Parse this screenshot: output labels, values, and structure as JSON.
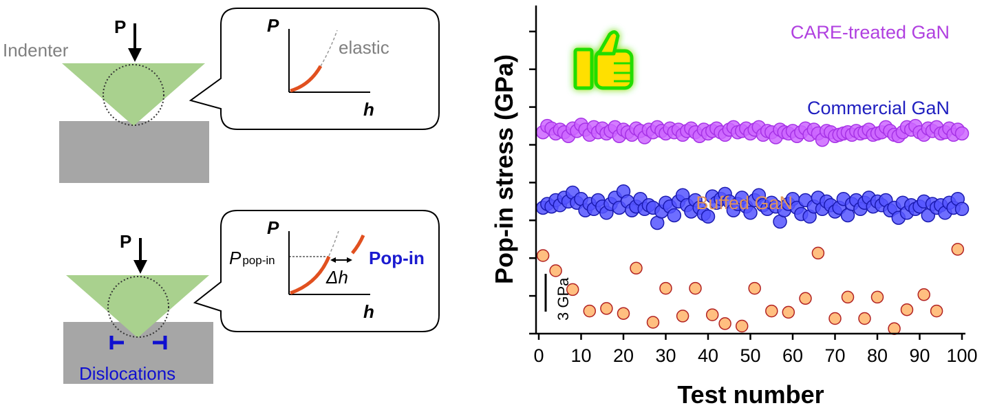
{
  "schematic": {
    "top": {
      "load_label": "P",
      "indenter_label": "Indenter",
      "inset": {
        "y_axis": "P",
        "x_axis": "h",
        "curve_label": "elastic"
      }
    },
    "bottom": {
      "load_label": "P",
      "dislocations_label": "Dislocations",
      "inset": {
        "y_axis": "P",
        "x_axis": "h",
        "popin_load_main": "P",
        "popin_load_sub": "pop-in",
        "delta_h": "Δh",
        "event_label": "Pop-in"
      }
    },
    "colors": {
      "indenter": "#a9d18e",
      "specimen": "#a6a6a6",
      "curve": "#e1501f",
      "dislocation": "#1010d0",
      "popin_text": "#1a1ad0"
    }
  },
  "chart_data": {
    "type": "scatter",
    "xlabel": "Test number",
    "ylabel": "Pop-in stress (GPa)",
    "xlim": [
      0,
      100
    ],
    "x_ticks": [
      0,
      10,
      20,
      30,
      40,
      50,
      60,
      70,
      80,
      90,
      100
    ],
    "scale_bar": {
      "label": "3 GPa",
      "value_gpa": 3
    },
    "y_ticks_unlabeled": true,
    "series": [
      {
        "name": "CARE-treated GaN",
        "color": "#cc66ff",
        "edge": "#a632e6",
        "x": [
          1,
          2,
          3,
          4,
          5,
          6,
          7,
          8,
          9,
          10,
          11,
          12,
          13,
          14,
          15,
          16,
          17,
          18,
          19,
          20,
          21,
          22,
          23,
          24,
          25,
          26,
          27,
          28,
          29,
          30,
          31,
          32,
          33,
          34,
          35,
          36,
          37,
          38,
          39,
          40,
          41,
          42,
          43,
          44,
          45,
          46,
          47,
          48,
          49,
          50,
          51,
          52,
          53,
          54,
          55,
          56,
          57,
          58,
          59,
          60,
          61,
          62,
          63,
          64,
          65,
          66,
          67,
          68,
          69,
          70,
          71,
          72,
          73,
          74,
          75,
          76,
          77,
          78,
          79,
          80,
          81,
          82,
          83,
          84,
          85,
          86,
          87,
          88,
          89,
          90,
          91,
          92,
          93,
          94,
          95,
          96,
          97,
          98,
          99,
          100
        ],
        "y": [
          19.0,
          19.5,
          19.3,
          18.9,
          19.2,
          19.0,
          18.7,
          19.3,
          19.1,
          19.6,
          19.2,
          18.8,
          19.4,
          19.0,
          19.3,
          18.9,
          19.1,
          19.4,
          18.7,
          19.2,
          19.0,
          18.8,
          19.3,
          19.1,
          18.6,
          19.2,
          19.0,
          19.4,
          19.1,
          18.9,
          19.3,
          19.0,
          19.2,
          18.8,
          19.1,
          19.3,
          19.0,
          18.7,
          19.2,
          18.9,
          19.1,
          19.3,
          19.0,
          18.8,
          19.2,
          19.4,
          19.0,
          19.1,
          19.3,
          18.9,
          19.2,
          19.4,
          18.8,
          19.1,
          19.0,
          18.6,
          19.2,
          19.0,
          18.9,
          19.1,
          18.7,
          19.0,
          19.3,
          18.8,
          19.2,
          18.9,
          18.4,
          19.1,
          19.0,
          18.7,
          18.8,
          18.9,
          19.0,
          18.8,
          19.1,
          18.9,
          19.0,
          19.2,
          18.8,
          18.9,
          19.0,
          19.4,
          19.1,
          18.8,
          18.7,
          19.0,
          19.4,
          19.2,
          19.5,
          19.0,
          18.8,
          19.3,
          19.1,
          19.4,
          18.9,
          19.0,
          19.3,
          18.8,
          19.2,
          18.9
        ]
      },
      {
        "name": "Commercial GaN",
        "color": "#5555ff",
        "edge": "#1a1ab0",
        "x": [
          1,
          2,
          3,
          4,
          5,
          6,
          7,
          8,
          9,
          10,
          11,
          12,
          13,
          14,
          15,
          16,
          17,
          18,
          19,
          20,
          21,
          22,
          23,
          24,
          25,
          26,
          27,
          28,
          29,
          30,
          31,
          32,
          33,
          34,
          35,
          36,
          37,
          38,
          39,
          40,
          41,
          42,
          43,
          44,
          45,
          46,
          47,
          48,
          49,
          50,
          51,
          52,
          53,
          54,
          55,
          56,
          57,
          58,
          59,
          60,
          61,
          62,
          63,
          64,
          65,
          66,
          67,
          68,
          69,
          70,
          71,
          72,
          73,
          74,
          75,
          76,
          77,
          78,
          79,
          80,
          81,
          82,
          83,
          84,
          85,
          86,
          87,
          88,
          89,
          90,
          91,
          92,
          93,
          94,
          95,
          96,
          97,
          98,
          99,
          100
        ],
        "y": [
          13.0,
          13.3,
          13.1,
          13.6,
          13.2,
          13.8,
          13.5,
          14.2,
          13.4,
          13.7,
          12.8,
          13.3,
          12.9,
          13.6,
          13.1,
          12.6,
          13.3,
          13.8,
          13.0,
          14.3,
          13.5,
          12.8,
          13.1,
          13.7,
          12.9,
          13.2,
          13.0,
          11.8,
          12.7,
          13.4,
          13.1,
          12.4,
          13.5,
          14.0,
          13.2,
          12.7,
          13.6,
          13.0,
          12.5,
          12.3,
          13.9,
          13.4,
          13.7,
          14.1,
          13.5,
          12.8,
          13.3,
          13.8,
          13.1,
          12.6,
          13.6,
          14.0,
          13.2,
          12.9,
          13.4,
          13.1,
          11.9,
          12.8,
          13.3,
          13.7,
          13.0,
          12.5,
          13.6,
          12.3,
          13.1,
          13.8,
          12.9,
          13.5,
          13.2,
          12.7,
          13.0,
          13.7,
          12.4,
          13.3,
          13.6,
          12.9,
          13.4,
          13.8,
          13.1,
          13.5,
          13.2,
          13.6,
          12.8,
          13.0,
          12.2,
          13.4,
          12.6,
          13.2,
          12.9,
          13.1,
          13.5,
          12.4,
          13.3,
          13.0,
          13.2,
          12.6,
          13.4,
          13.0,
          13.7,
          12.9
        ]
      },
      {
        "name": "Buffed GaN",
        "color": "#ffbf80",
        "edge": "#b22222",
        "x": [
          1,
          4,
          8,
          12,
          16,
          20,
          23,
          27,
          30,
          34,
          37,
          41,
          44,
          48,
          51,
          55,
          59,
          63,
          66,
          70,
          73,
          77,
          80,
          84,
          87,
          91,
          94,
          99
        ],
        "y": [
          9.2,
          8.0,
          6.5,
          4.8,
          5.0,
          4.6,
          8.2,
          3.9,
          6.6,
          4.4,
          6.6,
          4.5,
          3.8,
          3.6,
          6.6,
          4.8,
          4.7,
          5.8,
          9.4,
          4.2,
          5.9,
          4.2,
          5.9,
          3.4,
          4.9,
          6.1,
          4.8,
          9.7
        ]
      }
    ]
  }
}
